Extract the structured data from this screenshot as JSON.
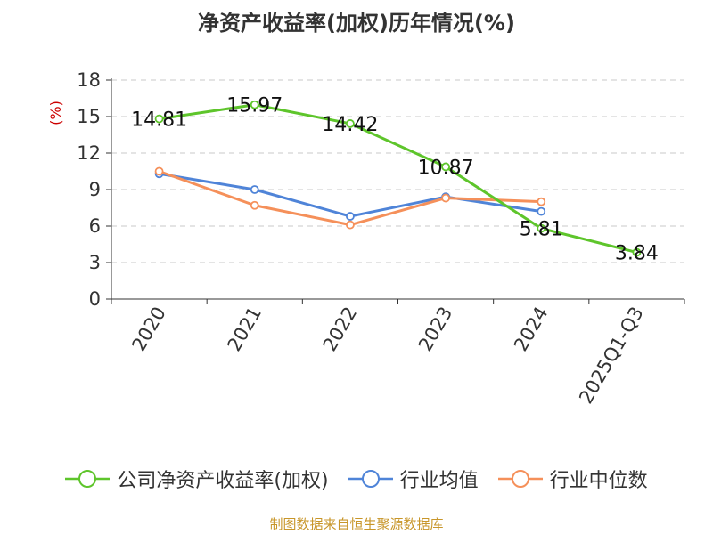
{
  "chart_data": {
    "type": "line",
    "title": "净资产收益率(加权)历年情况(%)",
    "ylabel": "(%)",
    "xlabel": "",
    "categories": [
      "2020",
      "2021",
      "2022",
      "2023",
      "2024",
      "2025Q1-Q3"
    ],
    "ylim": [
      0,
      18
    ],
    "yticks": [
      0,
      3,
      6,
      9,
      12,
      15,
      18
    ],
    "grid": true,
    "legend_position": "bottom",
    "series": [
      {
        "name": "公司净资产收益率(加权)",
        "color": "#5ec52b",
        "labels": true,
        "values": [
          14.81,
          15.97,
          14.42,
          10.87,
          5.81,
          3.84
        ]
      },
      {
        "name": "行业均值",
        "color": "#4f84d8",
        "labels": false,
        "values": [
          10.3,
          9.0,
          6.8,
          8.4,
          7.2,
          null
        ]
      },
      {
        "name": "行业中位数",
        "color": "#f5905a",
        "labels": false,
        "values": [
          10.5,
          7.7,
          6.1,
          8.3,
          8.0,
          null
        ]
      }
    ]
  },
  "source": "制图数据来自恒生聚源数据库"
}
